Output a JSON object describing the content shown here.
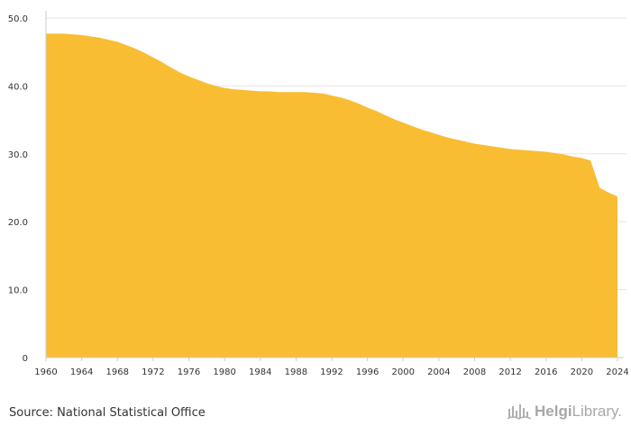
{
  "chart_data": {
    "type": "area",
    "title": "",
    "xlabel": "",
    "ylabel": "",
    "xlim": [
      1960,
      2024
    ],
    "ylim": [
      0,
      50
    ],
    "grid": true,
    "x_ticks": [
      1960,
      1964,
      1968,
      1972,
      1976,
      1980,
      1984,
      1988,
      1992,
      1996,
      2000,
      2004,
      2008,
      2012,
      2016,
      2020,
      2024
    ],
    "y_ticks": [
      0,
      10,
      20,
      30,
      40,
      50
    ],
    "y_tick_labels": [
      "0",
      "10.0",
      "20.0",
      "30.0",
      "40.0",
      "50.0"
    ],
    "series": [
      {
        "name": "Value",
        "color": "#F9BD33",
        "x": [
          1960,
          1961,
          1962,
          1963,
          1964,
          1965,
          1966,
          1967,
          1968,
          1969,
          1970,
          1971,
          1972,
          1973,
          1974,
          1975,
          1976,
          1977,
          1978,
          1979,
          1980,
          1981,
          1982,
          1983,
          1984,
          1985,
          1986,
          1987,
          1988,
          1989,
          1990,
          1991,
          1992,
          1993,
          1994,
          1995,
          1996,
          1997,
          1998,
          1999,
          2000,
          2001,
          2002,
          2003,
          2004,
          2005,
          2006,
          2007,
          2008,
          2009,
          2010,
          2011,
          2012,
          2013,
          2014,
          2015,
          2016,
          2017,
          2018,
          2019,
          2020,
          2021,
          2022,
          2023,
          2024
        ],
        "values": [
          47.7,
          47.7,
          47.7,
          47.6,
          47.5,
          47.3,
          47.1,
          46.8,
          46.5,
          46.0,
          45.5,
          44.9,
          44.2,
          43.5,
          42.7,
          42.0,
          41.4,
          40.9,
          40.4,
          40.0,
          39.7,
          39.5,
          39.4,
          39.3,
          39.2,
          39.2,
          39.1,
          39.1,
          39.1,
          39.1,
          39.0,
          38.9,
          38.6,
          38.3,
          37.9,
          37.4,
          36.8,
          36.3,
          35.7,
          35.1,
          34.6,
          34.1,
          33.6,
          33.2,
          32.8,
          32.4,
          32.1,
          31.8,
          31.5,
          31.3,
          31.1,
          30.9,
          30.7,
          30.6,
          30.5,
          30.4,
          30.3,
          30.1,
          29.9,
          29.6,
          29.4,
          29.0,
          25.0,
          24.3,
          23.7
        ]
      }
    ]
  },
  "footer": {
    "source": "Source: National Statistical Office",
    "logo_text_bold": "Helgi",
    "logo_text_light": "Library."
  }
}
